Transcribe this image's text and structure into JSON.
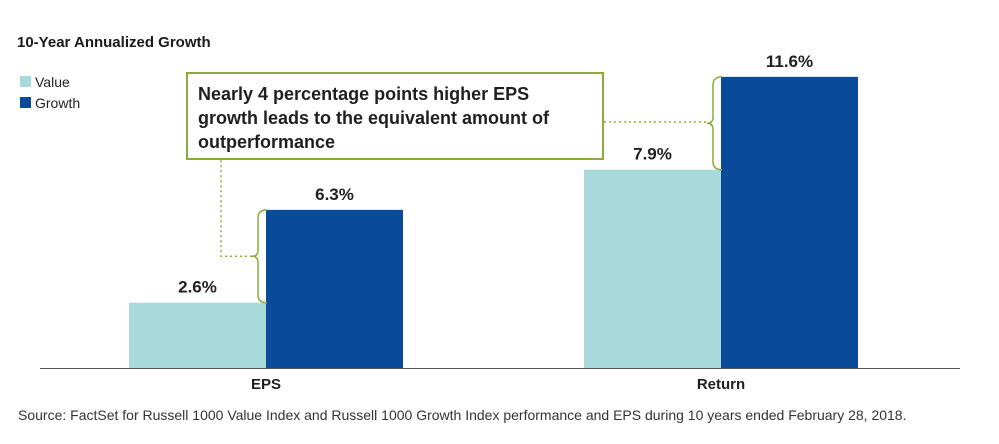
{
  "chart_data": {
    "type": "bar",
    "title": "10-Year Annualized Growth",
    "categories": [
      "EPS",
      "Return"
    ],
    "series": [
      {
        "name": "Value",
        "values": [
          2.6,
          7.9
        ],
        "labels": [
          "2.6%",
          "7.9%"
        ],
        "color": "#a8dadb"
      },
      {
        "name": "Growth",
        "values": [
          6.3,
          11.6
        ],
        "labels": [
          "6.3%",
          "11.6%"
        ],
        "color": "#0a4a9b"
      }
    ],
    "ylim": [
      0,
      12
    ],
    "annotation": "Nearly 4 percentage points higher EPS growth leads to the equivalent amount of outperformance",
    "annotation_color": "#8cab3a",
    "source": "Source: FactSet for Russell 1000 Value Index and Russell 1000 Growth Index performance and EPS during 10 years ended February 28, 2018."
  }
}
